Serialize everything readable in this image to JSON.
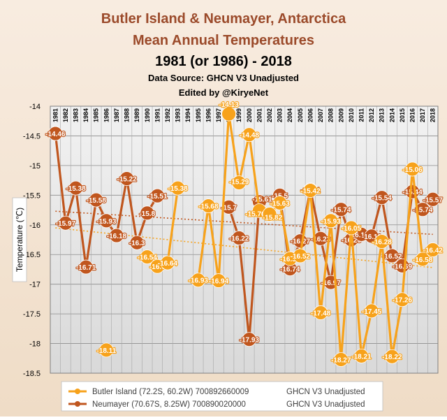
{
  "chart_data": {
    "type": "line",
    "title_lines": [
      "Butler Island  & Neumayer, Antarctica",
      "Mean Annual Temperatures",
      "1981 (or 1986) - 2018",
      "Data Source: GHCN V3 Unadjusted",
      "Edited by @KiryeNet"
    ],
    "ylabel": "Temperature (℃)",
    "ylim": [
      -18.5,
      -14
    ],
    "yticks": [
      -14,
      -14.5,
      -15,
      -15.5,
      -16,
      -16.5,
      -17,
      -17.5,
      -18,
      -18.5
    ],
    "years": [
      1981,
      1982,
      1983,
      1984,
      1985,
      1986,
      1987,
      1988,
      1989,
      1990,
      1991,
      1992,
      1993,
      1994,
      1995,
      1996,
      1997,
      1998,
      1999,
      2000,
      2001,
      2002,
      2003,
      2004,
      2005,
      2006,
      2007,
      2008,
      2009,
      2010,
      2011,
      2012,
      2013,
      2014,
      2015,
      2016,
      2017,
      2018
    ],
    "series": [
      {
        "name": "Butler Island",
        "legend_label": "Butler Island (72.2S, 60.2W) 700892660009",
        "legend_source": "GHCN V3 Unadjusted",
        "color": "#f7a21b",
        "values": [
          null,
          null,
          null,
          null,
          null,
          -18.11,
          null,
          null,
          null,
          -16.54,
          -16.7,
          -16.64,
          -15.38,
          null,
          -16.93,
          -15.68,
          -16.94,
          -14.13,
          -15.29,
          -14.48,
          -15.76,
          -15.82,
          -15.63,
          -16.57,
          -16.52,
          -15.42,
          -17.48,
          -15.93,
          -18.27,
          -16.05,
          -18.21,
          -17.45,
          -16.28,
          -18.22,
          -17.26,
          -15.06,
          -16.58,
          -16.42
        ],
        "labels": [
          null,
          null,
          null,
          null,
          null,
          "-18.11",
          null,
          null,
          null,
          "-16.54",
          "-16.7",
          "-16.64",
          "-15.38",
          null,
          "-16.93",
          "-15.68",
          "-16.94",
          "-14.13",
          "-15.29",
          "-14.48",
          "-15.76",
          "-15.82",
          "-15.63",
          "-16.57",
          "-16.52",
          "-15.42",
          "-17.48",
          "-15.93",
          "-18.27",
          "-16.05",
          "-18.21",
          "-17.45",
          "-16.28",
          "-18.22",
          "-17.26",
          "-15.06",
          "-16.58",
          "-16.42"
        ]
      },
      {
        "name": "Neumayer",
        "legend_label": "Neumayer (70.67S, 8.25W) 700890020000",
        "legend_source": "GHCN V3 Unadjusted",
        "color": "#c0561e",
        "values": [
          -14.46,
          -15.97,
          -15.38,
          -16.71,
          -15.58,
          -15.93,
          -16.18,
          -15.22,
          -16.3,
          -15.8,
          -15.51,
          null,
          null,
          null,
          null,
          null,
          null,
          -15.7,
          -16.22,
          -17.93,
          -15.61,
          null,
          -15.5,
          -16.74,
          -16.27,
          -15.41,
          -16.23,
          -16.97,
          -15.74,
          -16.25,
          -16.16,
          -16.19,
          -15.54,
          -16.52,
          -16.69,
          -15.44,
          -15.74,
          -15.57
        ],
        "labels": [
          "-14.46",
          "-15.97",
          "-15.38",
          "-16.71",
          "-15.58",
          "-15.93",
          "-16.18",
          "-15.22",
          "-16.3",
          "-15.8",
          "-15.51",
          null,
          null,
          null,
          null,
          null,
          null,
          "-15.7",
          "-16.22",
          "-17.93",
          "-15.61",
          null,
          "-15.5",
          "-16.74",
          "-16.27",
          "-15.41",
          "-16.23",
          "-16.97",
          "-15.74",
          "-16.25",
          "-16.16",
          "-16.19",
          "-15.54",
          "-16.52",
          "-16.69",
          "-15.44",
          "-15.74",
          "-15.57"
        ]
      }
    ],
    "trendlines": [
      {
        "series": "Butler Island",
        "start": [
          1981,
          -16.05
        ],
        "end": [
          2018,
          -16.72
        ]
      },
      {
        "series": "Neumayer",
        "start": [
          1981,
          -15.77
        ],
        "end": [
          2018,
          -16.16
        ]
      }
    ],
    "grid": true,
    "legend": "bottom-left"
  }
}
